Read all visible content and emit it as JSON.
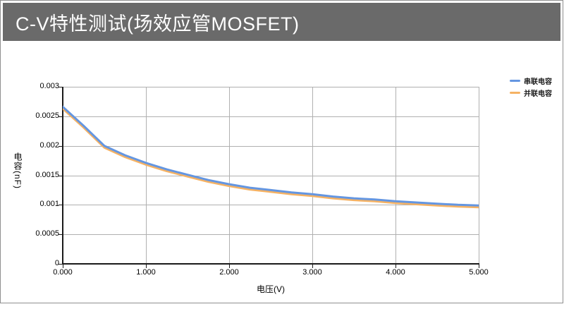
{
  "header": {
    "title": "C-V特性测试(场效应管MOSFET)"
  },
  "chart": {
    "y_axis": {
      "title": "电容(nF)",
      "ticks": [
        "0.003",
        "0.0025",
        "0.002",
        "0.0015",
        "0.001",
        "0.0005",
        "0"
      ]
    },
    "x_axis": {
      "title": "电压(V)",
      "ticks": [
        "0.000",
        "1.000",
        "2.000",
        "3.000",
        "4.000",
        "5.000"
      ]
    },
    "legend": [
      {
        "label": "串联电容",
        "color": "#6496e1"
      },
      {
        "label": "并联电容",
        "color": "#f5b264"
      }
    ]
  },
  "colors": {
    "header_bg": "#6a6a6a",
    "header_text": "#ffffff",
    "grid": "#b0b0b0",
    "axis": "#1a1a1a",
    "series_blue": "#6496e1",
    "series_orange": "#f5b264"
  },
  "chart_data": {
    "type": "line",
    "title": "",
    "xlabel": "电压(V)",
    "ylabel": "电容(nF)",
    "xlim": [
      0,
      5
    ],
    "ylim": [
      0,
      0.003
    ],
    "grid": true,
    "legend_position": "top-right",
    "x": [
      0.0,
      0.25,
      0.5,
      0.75,
      1.0,
      1.25,
      1.5,
      1.75,
      2.0,
      2.25,
      2.5,
      2.75,
      3.0,
      3.25,
      3.5,
      3.75,
      4.0,
      4.25,
      4.5,
      4.75,
      5.0
    ],
    "series": [
      {
        "name": "串联电容",
        "color": "#6496e1",
        "values": [
          0.00266,
          0.00234,
          0.002,
          0.00184,
          0.00171,
          0.0016,
          0.00151,
          0.00142,
          0.00135,
          0.00129,
          0.00125,
          0.00121,
          0.00118,
          0.00114,
          0.00111,
          0.00109,
          0.00106,
          0.00104,
          0.00102,
          0.001,
          0.00099
        ],
        "unit": "nF"
      },
      {
        "name": "并联电容",
        "color": "#f5b264",
        "values": [
          0.00263,
          0.00231,
          0.00197,
          0.00181,
          0.00168,
          0.00157,
          0.00148,
          0.00139,
          0.00132,
          0.00126,
          0.00122,
          0.00118,
          0.00115,
          0.00111,
          0.00108,
          0.00106,
          0.00103,
          0.00101,
          0.00099,
          0.00097,
          0.00096
        ],
        "unit": "nF"
      }
    ]
  }
}
